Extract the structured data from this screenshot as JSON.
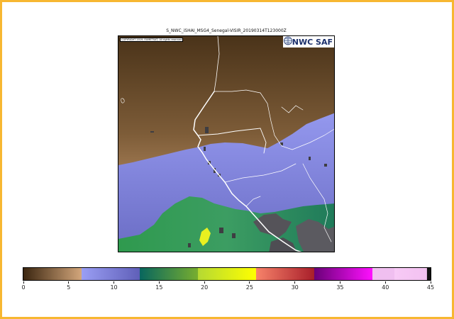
{
  "title": "S_NWC_iSHAI_MSG4_Senegal-VISIR_20190314T123000Z",
  "copyright": "COPYRIGHT 2019, EUMETSAT, All rights reserved",
  "logo": {
    "text": "NWC SAF"
  },
  "colors": {
    "frame": "#f7b731",
    "dry_dark": "#4a3319",
    "dry_light": "#d3a57a",
    "blue": "#8e92ea",
    "green": "#2f8a5a",
    "yellow": "#e8f020",
    "red": "#c4403c",
    "magenta": "#e010d8",
    "pink": "#f7c4f0"
  },
  "colorbar": {
    "min": 0,
    "max": 45,
    "segments": [
      {
        "from": 0,
        "to": 6.43,
        "start": "#3b2610",
        "end": "#d4a77c"
      },
      {
        "from": 6.43,
        "to": 12.86,
        "start": "#9a9ef4",
        "end": "#5f5fb8"
      },
      {
        "from": 12.86,
        "to": 19.29,
        "start": "#08665e",
        "end": "#78ae2f"
      },
      {
        "from": 19.29,
        "to": 25.71,
        "start": "#b5d933",
        "end": "#ffff00"
      },
      {
        "from": 25.71,
        "to": 32.14,
        "start": "#f7836a",
        "end": "#a81e2a"
      },
      {
        "from": 32.14,
        "to": 38.57,
        "start": "#6a0078",
        "end": "#ff10ff"
      },
      {
        "from": 38.57,
        "to": 41.0,
        "start": "#f0bff0",
        "end": "#f0bff0"
      },
      {
        "from": 41.0,
        "to": 44.6,
        "start": "#f8caf6",
        "end": "#f2c1f0"
      },
      {
        "from": 44.6,
        "to": 45,
        "start": "#111111",
        "end": "#111111"
      }
    ],
    "ticks": [
      {
        "value": 0,
        "label": "0"
      },
      {
        "value": 5,
        "label": "5"
      },
      {
        "value": 10,
        "label": "10"
      },
      {
        "value": 15,
        "label": "15"
      },
      {
        "value": 20,
        "label": "20"
      },
      {
        "value": 25,
        "label": "25"
      },
      {
        "value": 30,
        "label": "30"
      },
      {
        "value": 35,
        "label": "35"
      },
      {
        "value": 40,
        "label": "40"
      },
      {
        "value": 45,
        "label": "45"
      }
    ]
  }
}
